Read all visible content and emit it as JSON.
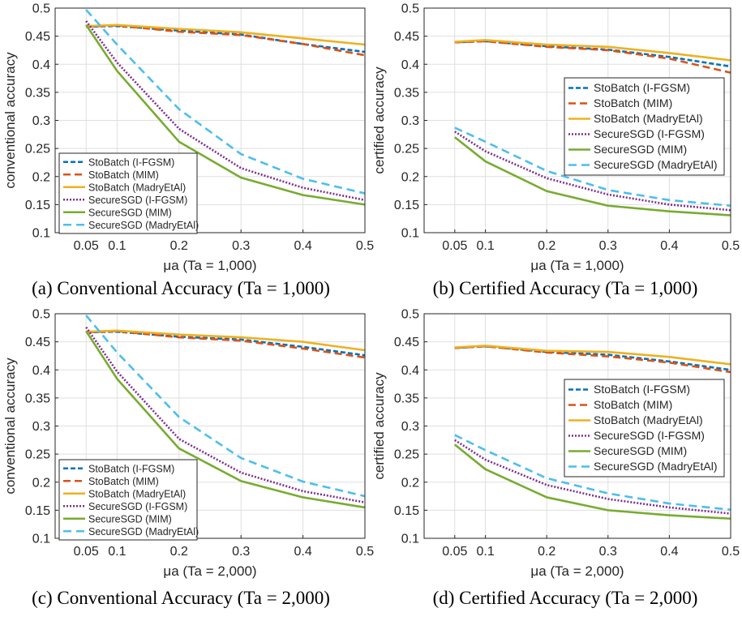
{
  "figure": {
    "styles": {
      "StoBatch (I-FGSM)": {
        "color": "#0072BD",
        "dash": "6,3"
      },
      "StoBatch (MIM)": {
        "color": "#D95319",
        "dash": "9,5"
      },
      "StoBatch (MadryEtAl)": {
        "color": "#EDB120",
        "dash": ""
      },
      "SecureSGD (I-FGSM)": {
        "color": "#7E2F8E",
        "dash": "2,2"
      },
      "SecureSGD (MIM)": {
        "color": "#77AC30",
        "dash": ""
      },
      "SecureSGD (MadryEtAl)": {
        "color": "#4DBEEE",
        "dash": "10,6"
      }
    }
  },
  "chart_data": [
    {
      "type": "line",
      "caption": "(a) Conventional Accuracy (Ta = 1,000)",
      "xlabel": "μa (Ta = 1,000)",
      "ylabel": "conventional accuracy",
      "x": [
        0.05,
        0.1,
        0.2,
        0.3,
        0.4,
        0.5
      ],
      "xticks": [
        "0.05",
        "0.1",
        "0.2",
        "0.3",
        "0.4",
        "0.5"
      ],
      "yticks": [
        "0.1",
        "0.15",
        "0.2",
        "0.25",
        "0.3",
        "0.35",
        "0.4",
        "0.45",
        "0.5"
      ],
      "xlim": [
        0,
        0.5
      ],
      "ylim": [
        0.1,
        0.5
      ],
      "grid": true,
      "legend": "bottom-left",
      "series": [
        {
          "name": "StoBatch (I-FGSM)",
          "values": [
            0.467,
            0.468,
            0.46,
            0.453,
            0.436,
            0.422
          ]
        },
        {
          "name": "StoBatch (MIM)",
          "values": [
            0.467,
            0.469,
            0.458,
            0.452,
            0.436,
            0.416
          ]
        },
        {
          "name": "StoBatch (MadryEtAl)",
          "values": [
            0.468,
            0.47,
            0.463,
            0.457,
            0.446,
            0.435
          ]
        },
        {
          "name": "SecureSGD (I-FGSM)",
          "values": [
            0.477,
            0.403,
            0.285,
            0.215,
            0.18,
            0.158
          ]
        },
        {
          "name": "SecureSGD (MIM)",
          "values": [
            0.47,
            0.388,
            0.262,
            0.198,
            0.167,
            0.15
          ]
        },
        {
          "name": "SecureSGD (MadryEtAl)",
          "values": [
            0.497,
            0.435,
            0.32,
            0.24,
            0.196,
            0.17
          ]
        }
      ]
    },
    {
      "type": "line",
      "caption": "(b) Certified Accuracy (Ta = 1,000)",
      "xlabel": "μa (Ta = 1,000)",
      "ylabel": "certified accuracy",
      "x": [
        0.05,
        0.1,
        0.2,
        0.3,
        0.4,
        0.5
      ],
      "xticks": [
        "0.05",
        "0.1",
        "0.2",
        "0.3",
        "0.4",
        "0.5"
      ],
      "yticks": [
        "0.1",
        "0.15",
        "0.2",
        "0.25",
        "0.3",
        "0.35",
        "0.4",
        "0.45",
        "0.5"
      ],
      "xlim": [
        0,
        0.5
      ],
      "ylim": [
        0.1,
        0.5
      ],
      "grid": true,
      "legend": "middle-right",
      "series": [
        {
          "name": "StoBatch (I-FGSM)",
          "values": [
            0.439,
            0.441,
            0.432,
            0.426,
            0.413,
            0.396
          ]
        },
        {
          "name": "StoBatch (MIM)",
          "values": [
            0.439,
            0.441,
            0.431,
            0.425,
            0.41,
            0.385
          ]
        },
        {
          "name": "StoBatch (MadryEtAl)",
          "values": [
            0.44,
            0.443,
            0.435,
            0.431,
            0.42,
            0.407
          ]
        },
        {
          "name": "SecureSGD (I-FGSM)",
          "values": [
            0.28,
            0.245,
            0.197,
            0.168,
            0.15,
            0.14
          ]
        },
        {
          "name": "SecureSGD (MIM)",
          "values": [
            0.27,
            0.227,
            0.174,
            0.148,
            0.138,
            0.131
          ]
        },
        {
          "name": "SecureSGD (MadryEtAl)",
          "values": [
            0.287,
            0.262,
            0.21,
            0.176,
            0.158,
            0.148
          ]
        }
      ]
    },
    {
      "type": "line",
      "caption": "(c) Conventional Accuracy (Ta = 2,000)",
      "xlabel": "μa (Ta = 2,000)",
      "ylabel": "conventional accuracy",
      "x": [
        0.05,
        0.1,
        0.2,
        0.3,
        0.4,
        0.5
      ],
      "xticks": [
        "0.05",
        "0.1",
        "0.2",
        "0.3",
        "0.4",
        "0.5"
      ],
      "yticks": [
        "0.1",
        "0.15",
        "0.2",
        "0.25",
        "0.3",
        "0.35",
        "0.4",
        "0.45",
        "0.5"
      ],
      "xlim": [
        0,
        0.5
      ],
      "ylim": [
        0.1,
        0.5
      ],
      "grid": true,
      "legend": "bottom-left",
      "series": [
        {
          "name": "StoBatch (I-FGSM)",
          "values": [
            0.467,
            0.468,
            0.459,
            0.454,
            0.441,
            0.426
          ]
        },
        {
          "name": "StoBatch (MIM)",
          "values": [
            0.467,
            0.469,
            0.458,
            0.452,
            0.438,
            0.422
          ]
        },
        {
          "name": "StoBatch (MadryEtAl)",
          "values": [
            0.468,
            0.47,
            0.463,
            0.458,
            0.45,
            0.435
          ]
        },
        {
          "name": "SecureSGD (I-FGSM)",
          "values": [
            0.476,
            0.397,
            0.277,
            0.217,
            0.184,
            0.164
          ]
        },
        {
          "name": "SecureSGD (MIM)",
          "values": [
            0.469,
            0.384,
            0.26,
            0.202,
            0.173,
            0.155
          ]
        },
        {
          "name": "SecureSGD (MadryEtAl)",
          "values": [
            0.497,
            0.431,
            0.316,
            0.243,
            0.201,
            0.175
          ]
        }
      ]
    },
    {
      "type": "line",
      "caption": "(d) Certified Accuracy (Ta = 2,000)",
      "xlabel": "μa (Ta = 2,000)",
      "ylabel": "certified accuracy",
      "x": [
        0.05,
        0.1,
        0.2,
        0.3,
        0.4,
        0.5
      ],
      "xticks": [
        "0.05",
        "0.1",
        "0.2",
        "0.3",
        "0.4",
        "0.5"
      ],
      "yticks": [
        "0.1",
        "0.15",
        "0.2",
        "0.25",
        "0.3",
        "0.35",
        "0.4",
        "0.45",
        "0.5"
      ],
      "xlim": [
        0,
        0.5
      ],
      "ylim": [
        0.1,
        0.5
      ],
      "grid": true,
      "legend": "middle-right",
      "series": [
        {
          "name": "StoBatch (I-FGSM)",
          "values": [
            0.439,
            0.442,
            0.432,
            0.427,
            0.415,
            0.4
          ]
        },
        {
          "name": "StoBatch (MIM)",
          "values": [
            0.439,
            0.442,
            0.431,
            0.424,
            0.413,
            0.396
          ]
        },
        {
          "name": "StoBatch (MadryEtAl)",
          "values": [
            0.44,
            0.443,
            0.434,
            0.432,
            0.423,
            0.41
          ]
        },
        {
          "name": "SecureSGD (I-FGSM)",
          "values": [
            0.275,
            0.24,
            0.195,
            0.17,
            0.155,
            0.144
          ]
        },
        {
          "name": "SecureSGD (MIM)",
          "values": [
            0.267,
            0.223,
            0.173,
            0.15,
            0.141,
            0.135
          ]
        },
        {
          "name": "SecureSGD (MadryEtAl)",
          "values": [
            0.284,
            0.257,
            0.207,
            0.18,
            0.162,
            0.151
          ]
        }
      ]
    }
  ]
}
